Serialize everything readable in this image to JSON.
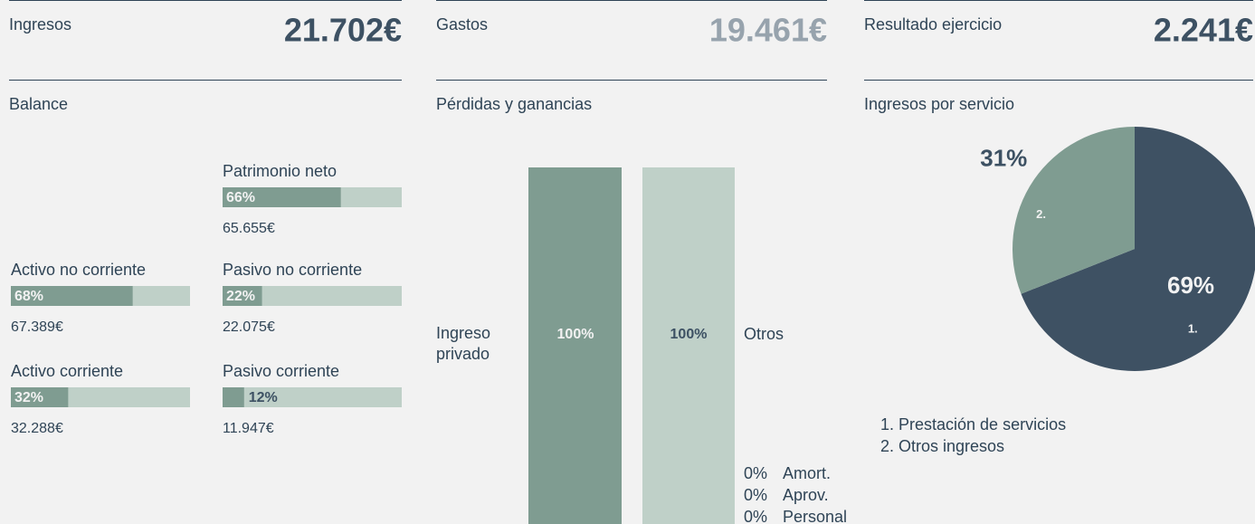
{
  "kpis": [
    {
      "label": "Ingresos",
      "value": "21.702€"
    },
    {
      "label": "Gastos",
      "value": "19.461€"
    },
    {
      "label": "Resultado ejercicio",
      "value": "2.241€"
    }
  ],
  "balance": {
    "title": "Balance",
    "items": [
      {
        "label": "Patrimonio neto",
        "value": 66,
        "value_label": "66%",
        "amount": "65.655€"
      },
      {
        "label": "Activo no corriente",
        "value": 68,
        "value_label": "68%",
        "amount": "67.389€"
      },
      {
        "label": "Pasivo no corriente",
        "value": 22,
        "value_label": "22%",
        "amount": "22.075€"
      },
      {
        "label": "Activo corriente",
        "value": 32,
        "value_label": "32%",
        "amount": "32.288€"
      },
      {
        "label": "Pasivo corriente",
        "value": 12,
        "value_label": "12%",
        "amount": "11.947€"
      }
    ]
  },
  "pl": {
    "title": "Pérdidas y ganancias",
    "income": {
      "label_lines": [
        "Ingreso",
        "privado"
      ],
      "value": 100,
      "value_label": "100%"
    },
    "expenses": {
      "label": "Otros",
      "value": 100,
      "value_label": "100%"
    },
    "other_expenses": [
      {
        "value": 0,
        "value_label": "0%",
        "label": "Amort."
      },
      {
        "value": 0,
        "value_label": "0%",
        "label": "Aprov."
      },
      {
        "value": 0,
        "value_label": "0%",
        "label": "Personal"
      }
    ]
  },
  "chart_data": {
    "type": "pie",
    "title": "Ingresos por servicio",
    "categories": [
      "Prestación de servicios",
      "Otros ingresos"
    ],
    "markers": [
      "1.",
      "2."
    ],
    "values": [
      69,
      31
    ],
    "value_labels": [
      "69%",
      "31%"
    ],
    "colors": [
      "#3e5163",
      "#7f9c91"
    ]
  }
}
